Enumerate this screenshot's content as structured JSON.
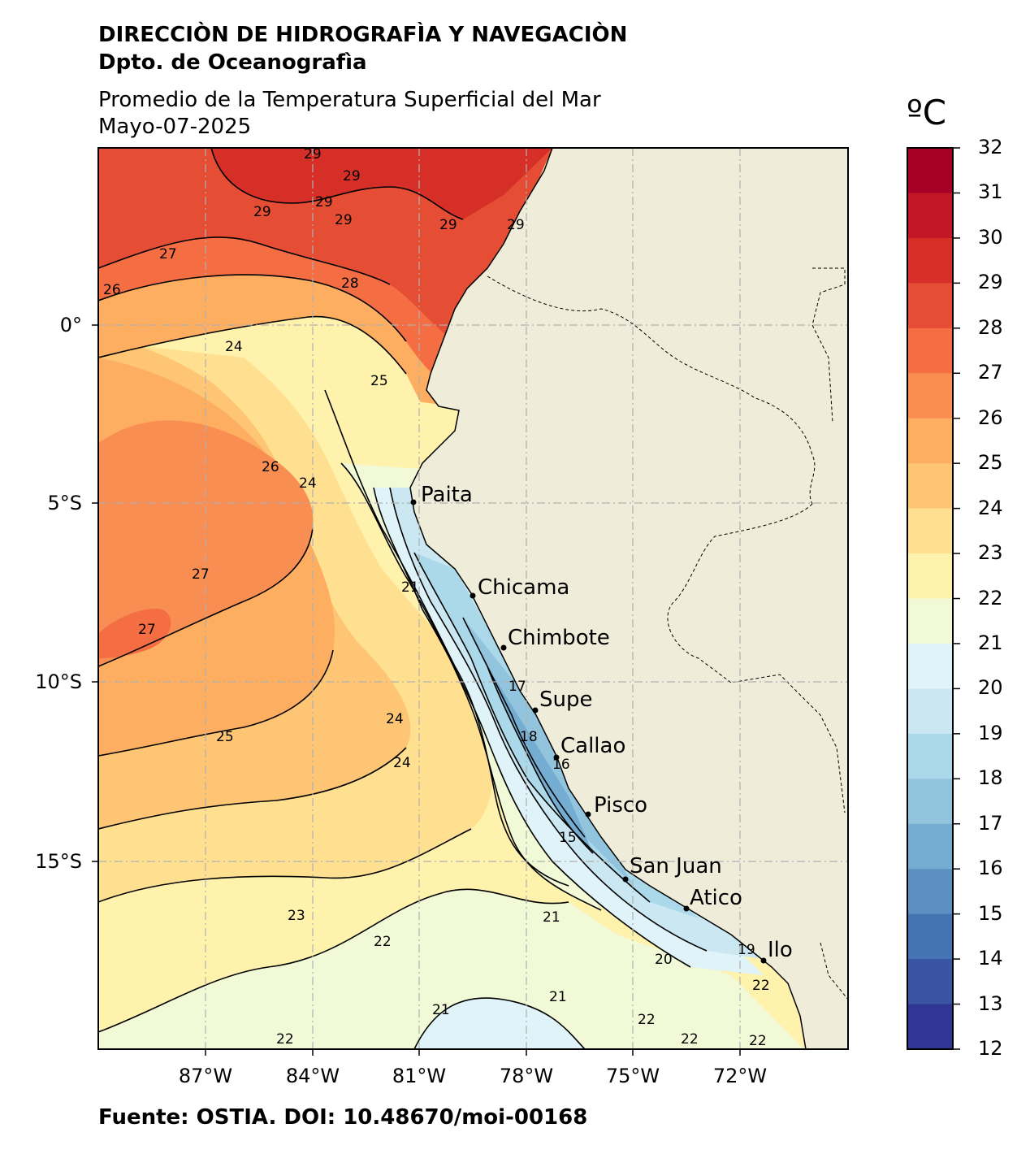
{
  "header": {
    "org": "DIRECCIÒN DE HIDROGRAFÌA Y NAVEGACIÒN",
    "dept": "Dpto. de Oceanografìa",
    "title": "Promedio de la Temperatura Superficial del Mar",
    "date": "Mayo-07-2025"
  },
  "source": "Fuente: OSTIA. DOI: 10.48670/moi-00168",
  "colorbar": {
    "unit": "ºC",
    "ticks": [
      "32",
      "31",
      "30",
      "29",
      "28",
      "27",
      "26",
      "25",
      "24",
      "23",
      "22",
      "21",
      "20",
      "19",
      "18",
      "17",
      "16",
      "15",
      "14",
      "13",
      "12"
    ],
    "colors": [
      "#a50026",
      "#c11727",
      "#d62f27",
      "#e54e35",
      "#f46d43",
      "#f98e52",
      "#fdae61",
      "#fdc574",
      "#fee090",
      "#fff2ac",
      "#f2f9d6",
      "#e0f3f8",
      "#cbe8f2",
      "#abd9e9",
      "#93c4de",
      "#74add1",
      "#5d90c2",
      "#4574b3",
      "#3a54a4",
      "#313695"
    ]
  },
  "axes": {
    "lat_labels": [
      "0°",
      "5°S",
      "10°S",
      "15°S"
    ],
    "lon_labels": [
      "87°W",
      "84°W",
      "81°W",
      "78°W",
      "75°W",
      "72°W"
    ]
  },
  "map": {
    "land_color": "#efedda",
    "cities": [
      "Paita",
      "Chicama",
      "Chimbote",
      "Supe",
      "Callao",
      "Pisco",
      "San Juan",
      "Atico",
      "Ilo"
    ],
    "contour_labels": [
      "29",
      "29",
      "29",
      "29",
      "29",
      "29",
      "29",
      "27",
      "26",
      "28",
      "24",
      "25",
      "26",
      "24",
      "27",
      "27",
      "24",
      "25",
      "24",
      "23",
      "22",
      "21",
      "21",
      "21",
      "22",
      "20",
      "19",
      "22",
      "22",
      "22",
      "22",
      "17",
      "18",
      "16",
      "15",
      "21"
    ]
  }
}
